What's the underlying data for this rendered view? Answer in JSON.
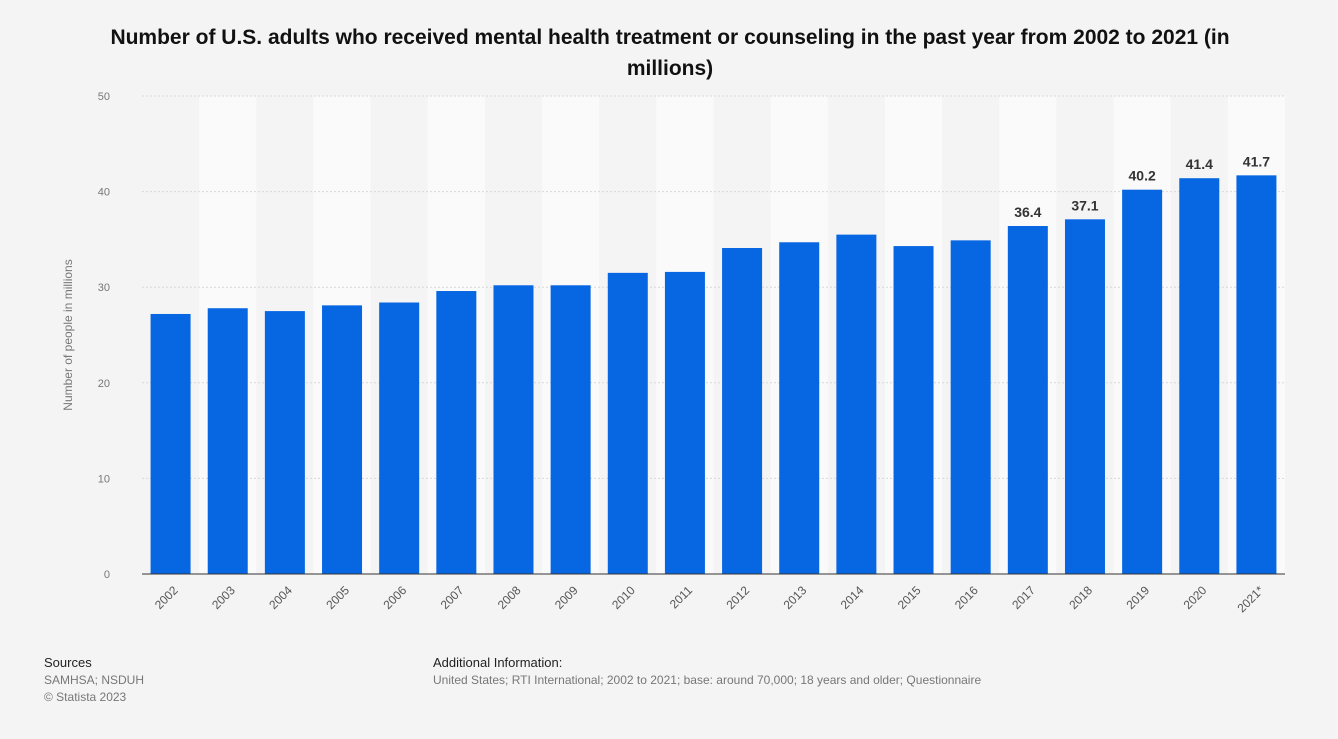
{
  "chart_data": {
    "type": "bar",
    "title": "Number of U.S. adults who received mental health treatment or counseling in the past year from 2002 to 2021 (in millions)",
    "xlabel": "",
    "ylabel": "Number of people in millions",
    "ylim": [
      0,
      50
    ],
    "yticks": [
      0,
      10,
      20,
      30,
      40,
      50
    ],
    "grid": true,
    "categories": [
      "2002",
      "2003",
      "2004",
      "2005",
      "2006",
      "2007",
      "2008",
      "2009",
      "2010",
      "2011",
      "2012",
      "2013",
      "2014",
      "2015",
      "2016",
      "2017",
      "2018",
      "2019",
      "2020",
      "2021*"
    ],
    "values": [
      27.2,
      27.8,
      27.5,
      28.1,
      28.4,
      29.6,
      30.2,
      30.2,
      31.5,
      31.6,
      34.1,
      34.7,
      35.5,
      34.3,
      34.9,
      36.4,
      37.1,
      40.2,
      41.4,
      41.7
    ],
    "data_labels": [
      null,
      null,
      null,
      null,
      null,
      null,
      null,
      null,
      null,
      null,
      null,
      null,
      null,
      null,
      null,
      "36.4",
      "37.1",
      "40.2",
      "41.4",
      "41.7"
    ],
    "bar_color": "#0766e2"
  },
  "footer": {
    "sources_heading": "Sources",
    "sources": "SAMHSA; NSDUH",
    "copyright": "© Statista 2023",
    "additional_heading": "Additional Information:",
    "additional": "United States; RTI International; 2002 to 2021; base: around 70,000; 18 years and older; Questionnaire"
  }
}
